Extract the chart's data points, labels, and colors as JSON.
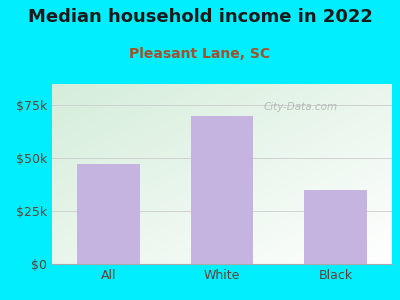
{
  "title": "Median household income in 2022",
  "subtitle": "Pleasant Lane, SC",
  "categories": [
    "All",
    "White",
    "Black"
  ],
  "values": [
    47000,
    70000,
    35000
  ],
  "bar_color": "#c5b3e0",
  "outer_bg": "#00eeff",
  "title_color": "#1a1a1a",
  "subtitle_color": "#a0522d",
  "axis_label_color": "#5d4037",
  "yticks": [
    0,
    25000,
    50000,
    75000
  ],
  "ytick_labels": [
    "$0",
    "$25k",
    "$50k",
    "$75k"
  ],
  "ylim": [
    0,
    85000
  ],
  "watermark": "City-Data.com",
  "title_fontsize": 13,
  "subtitle_fontsize": 10,
  "tick_fontsize": 9,
  "bar_width": 0.55,
  "grid_color": "#cccccc",
  "inner_bg_topleft": "#d4edda",
  "inner_bg_bottomright": "#f8fff8"
}
